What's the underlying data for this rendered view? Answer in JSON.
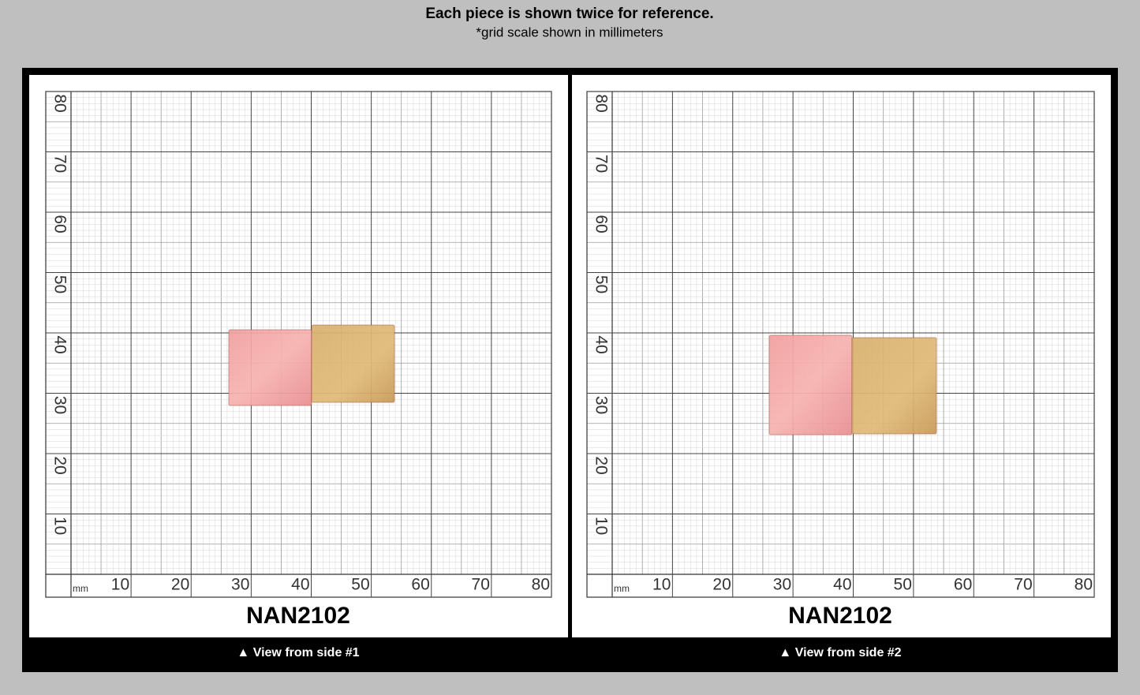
{
  "header": {
    "title": "Each piece is shown twice for reference.",
    "subtitle": "*grid scale shown in millimeters"
  },
  "panels": [
    {
      "unit": "mm",
      "x_labels": [
        10,
        20,
        30,
        40,
        50,
        60,
        70,
        80
      ],
      "y_labels": [
        10,
        20,
        30,
        40,
        50,
        60,
        70,
        80
      ],
      "label": "NAN2102",
      "caption": "▲ View from side #1"
    },
    {
      "unit": "mm",
      "x_labels": [
        10,
        20,
        30,
        40,
        50,
        60,
        70,
        80
      ],
      "y_labels": [
        10,
        20,
        30,
        40,
        50,
        60,
        70,
        80
      ],
      "label": "NAN2102",
      "caption": "▲ View from side #2"
    }
  ]
}
